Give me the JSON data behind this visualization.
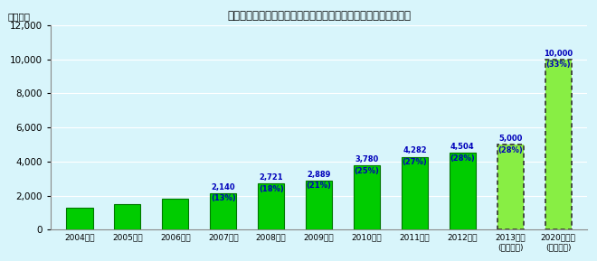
{
  "title": "「グリーンイノベーション製品」売上高（カッコ内は売上比率）",
  "ylabel": "（億円）",
  "categories": [
    "2004年度",
    "2005年度",
    "2006年度",
    "2007年度",
    "2008年度",
    "2009年度",
    "2010年度",
    "2011年度",
    "2012年度",
    "2013年度\n(当初目標)",
    "2020年近傍\n(イメージ)"
  ],
  "values": [
    1300,
    1500,
    1800,
    2140,
    2721,
    2889,
    3780,
    4282,
    4504,
    5000,
    10000
  ],
  "val_labels": [
    "",
    "",
    "",
    "2,140",
    "2,721",
    "2,889",
    "3,780",
    "4,282",
    "4,504",
    "5,000",
    "10,000"
  ],
  "pct_labels": [
    "",
    "",
    "",
    "(13%)",
    "(18%)",
    "(21%)",
    "(25%)",
    "(27%)",
    "(28%)",
    "(28%)",
    "(33%)"
  ],
  "solid_bars": [
    0,
    1,
    2,
    3,
    4,
    5,
    6,
    7,
    8
  ],
  "dotted_bars": [
    9,
    10
  ],
  "bar_color_solid": "#00cc00",
  "bar_color_dotted": "#88ee44",
  "bar_edge_solid": "#007700",
  "bg_color": "#d8f5fb",
  "label_color": "#0000bb",
  "ylim": [
    0,
    12000
  ],
  "yticks": [
    0,
    2000,
    4000,
    6000,
    8000,
    10000,
    12000
  ]
}
